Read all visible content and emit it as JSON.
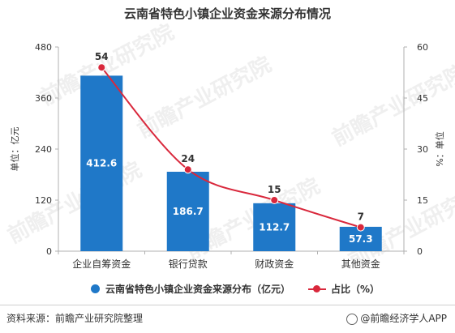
{
  "title": "云南省特色小镇企业资金来源分布情况",
  "chart_data": {
    "type": "bar",
    "title": "云南省特色小镇企业资金来源分布情况",
    "categories": [
      "企业自筹资金",
      "银行贷款",
      "财政资金",
      "其他资金"
    ],
    "series": [
      {
        "name": "云南省特色小镇企业资金来源分布（亿元）",
        "type": "bar",
        "axis": "left",
        "values": [
          412.6,
          186.7,
          112.7,
          57.3
        ],
        "color": "#1f78c8"
      },
      {
        "name": "占比（%）",
        "type": "line",
        "axis": "right",
        "values": [
          54,
          24,
          15,
          7
        ],
        "color": "#d9283c"
      }
    ],
    "ylabel_left": "单位：亿元",
    "ylabel_right": "%：单位",
    "ylim_left": [
      0,
      480
    ],
    "yticks_left": [
      0,
      120,
      240,
      360,
      480
    ],
    "ylim_right": [
      0,
      60
    ],
    "yticks_right": [
      0,
      15,
      30,
      45,
      60
    ],
    "grid": false,
    "legend_position": "bottom"
  },
  "legend": {
    "bar_label": "云南省特色小镇企业资金来源分布（亿元）",
    "line_label": "占比（%）"
  },
  "footer": {
    "source": "资料来源：前瞻产业研究院整理",
    "brand": "@前瞻经济学人APP"
  },
  "watermark": "前瞻产业研究院"
}
